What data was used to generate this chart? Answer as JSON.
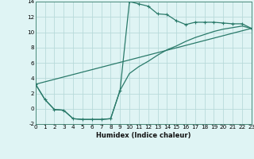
{
  "xlabel": "Humidex (Indice chaleur)",
  "line_color": "#2a7a6a",
  "bg_color": "#dff4f4",
  "grid_color": "#b8dada",
  "xlim": [
    0,
    23
  ],
  "ylim": [
    -2,
    14
  ],
  "xticks": [
    0,
    1,
    2,
    3,
    4,
    5,
    6,
    7,
    8,
    9,
    10,
    11,
    12,
    13,
    14,
    15,
    16,
    17,
    18,
    19,
    20,
    21,
    22,
    23
  ],
  "yticks": [
    -2,
    0,
    2,
    4,
    6,
    8,
    10,
    12,
    14
  ],
  "series1_x": [
    0,
    1,
    2,
    3,
    4,
    5,
    6,
    7,
    8,
    9,
    10,
    11,
    12,
    13,
    14,
    15,
    16,
    17,
    18,
    19,
    20,
    21,
    22,
    23
  ],
  "series1_y": [
    3.2,
    1.2,
    -0.1,
    -0.2,
    -1.3,
    -1.4,
    -1.4,
    -1.4,
    -1.3,
    2.4,
    14.0,
    13.7,
    13.4,
    12.4,
    12.3,
    11.5,
    11.0,
    11.3,
    11.3,
    11.3,
    11.2,
    11.1,
    11.1,
    10.5
  ],
  "series2_x": [
    0,
    1,
    2,
    3,
    4,
    5,
    6,
    7,
    8,
    9,
    10,
    11,
    12,
    13,
    14,
    15,
    16,
    17,
    18,
    19,
    20,
    21,
    22,
    23
  ],
  "series2_y": [
    3.2,
    1.2,
    -0.1,
    -0.2,
    -1.3,
    -1.4,
    -1.4,
    -1.4,
    -1.3,
    2.4,
    4.6,
    5.5,
    6.2,
    7.0,
    7.7,
    8.2,
    8.8,
    9.3,
    9.7,
    10.1,
    10.4,
    10.6,
    10.8,
    10.5
  ],
  "series3_x": [
    0,
    23
  ],
  "series3_y": [
    3.2,
    10.5
  ],
  "xlabel_fontsize": 6.0,
  "tick_fontsize": 5.2
}
